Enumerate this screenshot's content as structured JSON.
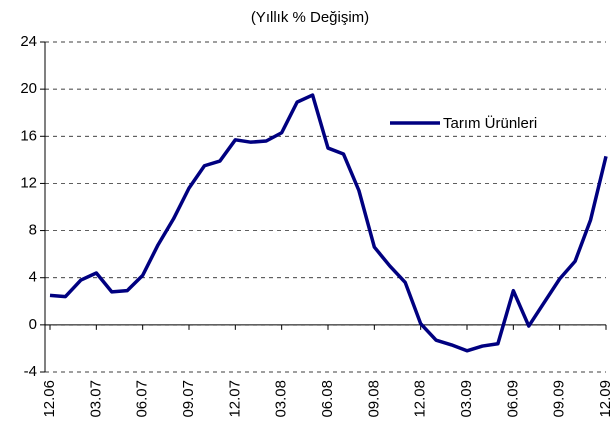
{
  "chart_data": {
    "type": "line",
    "title": "(Yıllık % Değişim)",
    "categories": [
      "12.06",
      null,
      null,
      "03.07",
      null,
      null,
      "06.07",
      null,
      null,
      "09.07",
      null,
      null,
      "12.07",
      null,
      null,
      "03.08",
      null,
      null,
      "06.08",
      null,
      null,
      "09.08",
      null,
      null,
      "12.08",
      null,
      null,
      "03.09",
      null,
      null,
      "06.09",
      null,
      null,
      "09.09",
      null,
      null,
      "12.09"
    ],
    "series": [
      {
        "name": "Tarım Ürünleri",
        "color": "#000080",
        "values": [
          2.5,
          2.4,
          3.8,
          4.4,
          2.8,
          2.9,
          4.2,
          6.8,
          9.0,
          11.6,
          13.5,
          13.9,
          15.7,
          15.5,
          15.6,
          16.3,
          18.9,
          19.5,
          15.0,
          14.5,
          11.4,
          6.6,
          5.0,
          3.6,
          0.1,
          -1.3,
          -1.7,
          -2.2,
          -1.8,
          -1.6,
          2.9,
          -0.1,
          1.9,
          3.9,
          5.4,
          8.9,
          14.3
        ]
      }
    ],
    "ylim": [
      -4,
      24
    ],
    "yticks": [
      -4,
      0,
      4,
      8,
      12,
      16,
      20,
      24
    ],
    "grid": true
  }
}
